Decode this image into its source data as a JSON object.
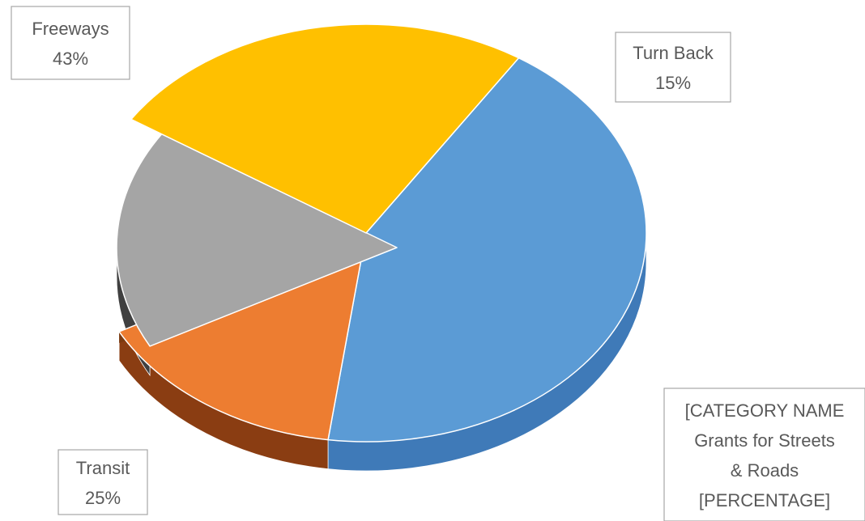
{
  "chart_data": {
    "type": "pie",
    "style": "3d-exploded",
    "title": "",
    "exploded_slice": "[CATEGORY NAME] Grants for Streets & Roads",
    "slices": [
      {
        "name": "Freeways",
        "value": 43,
        "label_lines": [
          "Freeways",
          "43%"
        ],
        "color": "#5b9bd5",
        "side_color": "#3f7ab8"
      },
      {
        "name": "Turn Back",
        "value": 15,
        "label_lines": [
          "Turn Back",
          "15%"
        ],
        "color": "#ed7d31",
        "side_color": "#8a3d12"
      },
      {
        "name": "Grants for Streets & Roads",
        "value": 17,
        "label_lines": [
          "[CATEGORY NAME",
          "Grants for Streets",
          "& Roads",
          "[PERCENTAGE]"
        ],
        "color": "#a5a5a5",
        "side_color": "#404040"
      },
      {
        "name": "Transit",
        "value": 25,
        "label_lines": [
          "Transit",
          "25%"
        ],
        "color": "#ffc000",
        "side_color": "#8a6500"
      }
    ]
  }
}
